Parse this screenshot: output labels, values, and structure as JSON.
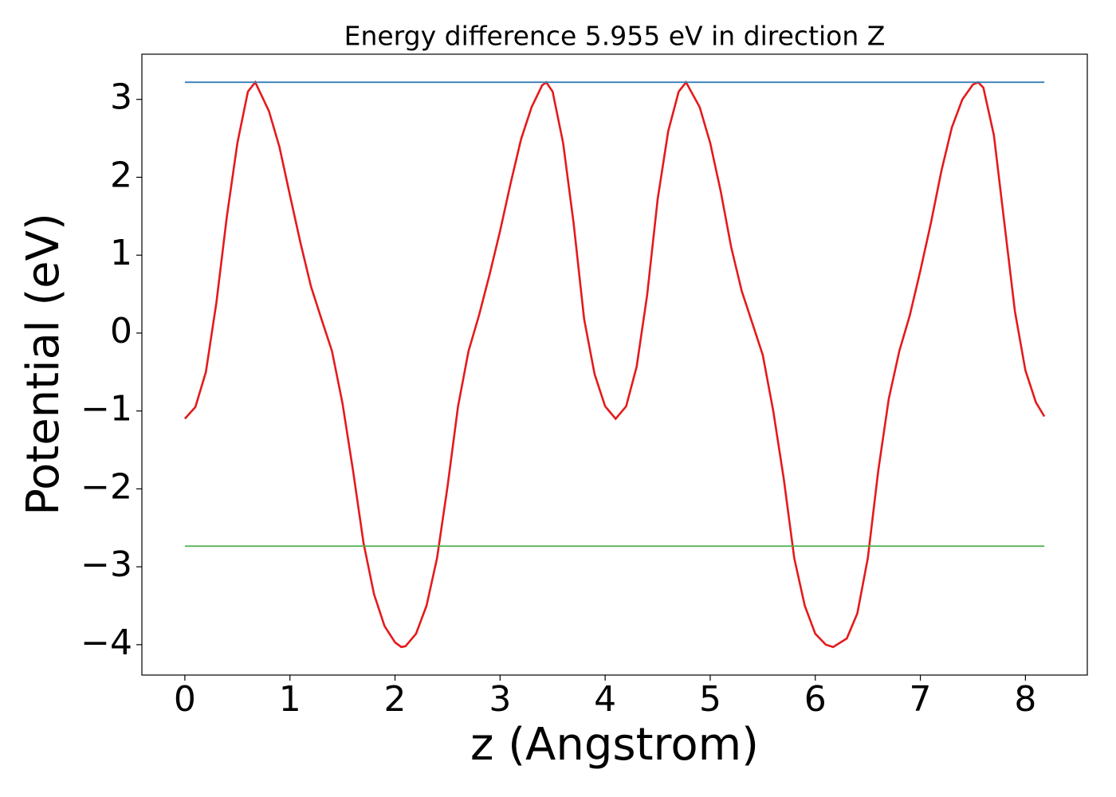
{
  "chart_data": {
    "type": "line",
    "title": "Energy difference 5.955 eV in direction Z",
    "x_label": "z (Angstrom)",
    "y_label": "Potential (eV)",
    "xlim": [
      -0.409,
      8.589
    ],
    "ylim": [
      -4.39,
      3.58
    ],
    "xticks": [
      0,
      1,
      2,
      3,
      4,
      5,
      6,
      7,
      8
    ],
    "yticks": [
      {
        "value": -4,
        "label": "−4"
      },
      {
        "value": -3,
        "label": "−3"
      },
      {
        "value": -2,
        "label": "−2"
      },
      {
        "value": -1,
        "label": "−1"
      },
      0,
      1,
      2,
      3
    ],
    "grid": false,
    "series": [
      {
        "color": "#e41a1c",
        "x": [
          0,
          0.1,
          0.2,
          0.3,
          0.4,
          0.5,
          0.6,
          0.67,
          0.8,
          0.9,
          1.0,
          1.1,
          1.2,
          1.3,
          1.4,
          1.5,
          1.6,
          1.7,
          1.8,
          1.9,
          2.0,
          2.06,
          2.1,
          2.2,
          2.3,
          2.4,
          2.5,
          2.6,
          2.7,
          2.8,
          2.9,
          3.0,
          3.1,
          3.2,
          3.3,
          3.4,
          3.44,
          3.5,
          3.6,
          3.7,
          3.8,
          3.9,
          4.0,
          4.1,
          4.2,
          4.3,
          4.4,
          4.5,
          4.6,
          4.7,
          4.77,
          4.9,
          5.0,
          5.1,
          5.2,
          5.3,
          5.4,
          5.5,
          5.6,
          5.7,
          5.8,
          5.9,
          6.0,
          6.1,
          6.17,
          6.3,
          6.4,
          6.5,
          6.6,
          6.7,
          6.8,
          6.9,
          7.0,
          7.1,
          7.2,
          7.3,
          7.4,
          7.5,
          7.55,
          7.6,
          7.7,
          7.8,
          7.9,
          8.0,
          8.1,
          8.18
        ],
        "values": [
          -1.1,
          -0.95,
          -0.5,
          0.39,
          1.5,
          2.44,
          3.1,
          3.22,
          2.85,
          2.39,
          1.77,
          1.16,
          0.6,
          0.18,
          -0.23,
          -0.9,
          -1.76,
          -2.69,
          -3.35,
          -3.76,
          -3.97,
          -4.03,
          -4.02,
          -3.86,
          -3.5,
          -2.89,
          -1.97,
          -0.94,
          -0.23,
          0.23,
          0.75,
          1.31,
          1.92,
          2.49,
          2.9,
          3.18,
          3.22,
          3.1,
          2.44,
          1.41,
          0.18,
          -0.53,
          -0.94,
          -1.1,
          -0.94,
          -0.43,
          0.49,
          1.72,
          2.59,
          3.1,
          3.22,
          2.9,
          2.44,
          1.82,
          1.1,
          0.54,
          0.13,
          -0.28,
          -1.0,
          -1.87,
          -2.89,
          -3.5,
          -3.86,
          -4.0,
          -4.03,
          -3.92,
          -3.6,
          -2.89,
          -1.76,
          -0.84,
          -0.23,
          0.23,
          0.8,
          1.41,
          2.08,
          2.64,
          3.0,
          3.19,
          3.22,
          3.15,
          2.54,
          1.41,
          0.28,
          -0.48,
          -0.89,
          -1.07
        ]
      },
      {
        "color": "#377eb8",
        "x": [
          0,
          8.18
        ],
        "values": [
          3.22,
          3.22
        ]
      },
      {
        "color": "#4daf4a",
        "x": [
          0,
          8.18
        ],
        "values": [
          -2.735,
          -2.735
        ]
      }
    ]
  }
}
